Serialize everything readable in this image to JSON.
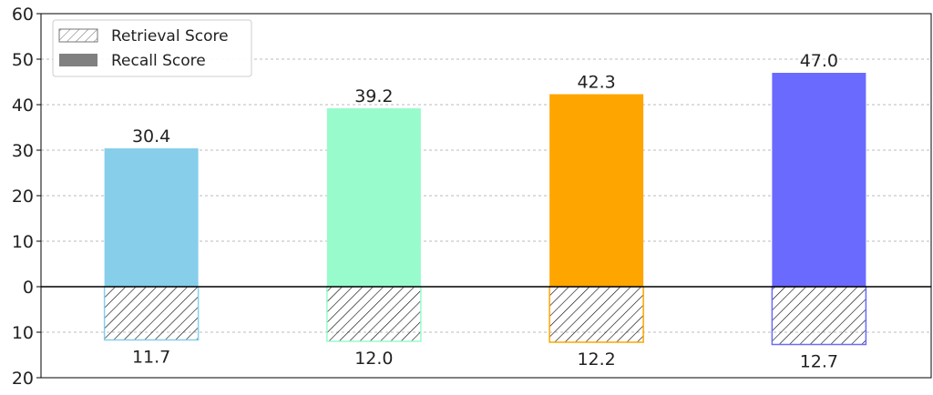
{
  "chart_data": {
    "type": "bar",
    "title": "",
    "xlabel": "",
    "ylabel": "",
    "ylim": [
      -20,
      60
    ],
    "ytick_values": [
      -20,
      -10,
      0,
      10,
      20,
      30,
      40,
      50,
      60
    ],
    "ytick_labels": [
      "20",
      "10",
      "0",
      "10",
      "20",
      "30",
      "40",
      "50",
      "60"
    ],
    "grid": true,
    "legend_placement": "top-left",
    "legend": [
      {
        "label": "Retrieval Score",
        "style": "hatched"
      },
      {
        "label": "Recall Score",
        "style": "solid",
        "color": "#808080"
      }
    ],
    "colors": [
      "#87ceeb",
      "#98fbcb",
      "#ffa500",
      "#6a6aff"
    ],
    "series": [
      {
        "name": "Recall Score",
        "values": [
          30.4,
          39.2,
          42.3,
          47.0
        ],
        "labels": [
          "30.4",
          "39.2",
          "42.3",
          "47.0"
        ]
      },
      {
        "name": "Retrieval Score",
        "values": [
          11.7,
          12.0,
          12.2,
          12.7
        ],
        "labels": [
          "11.7",
          "12.0",
          "12.2",
          "12.7"
        ]
      }
    ]
  }
}
